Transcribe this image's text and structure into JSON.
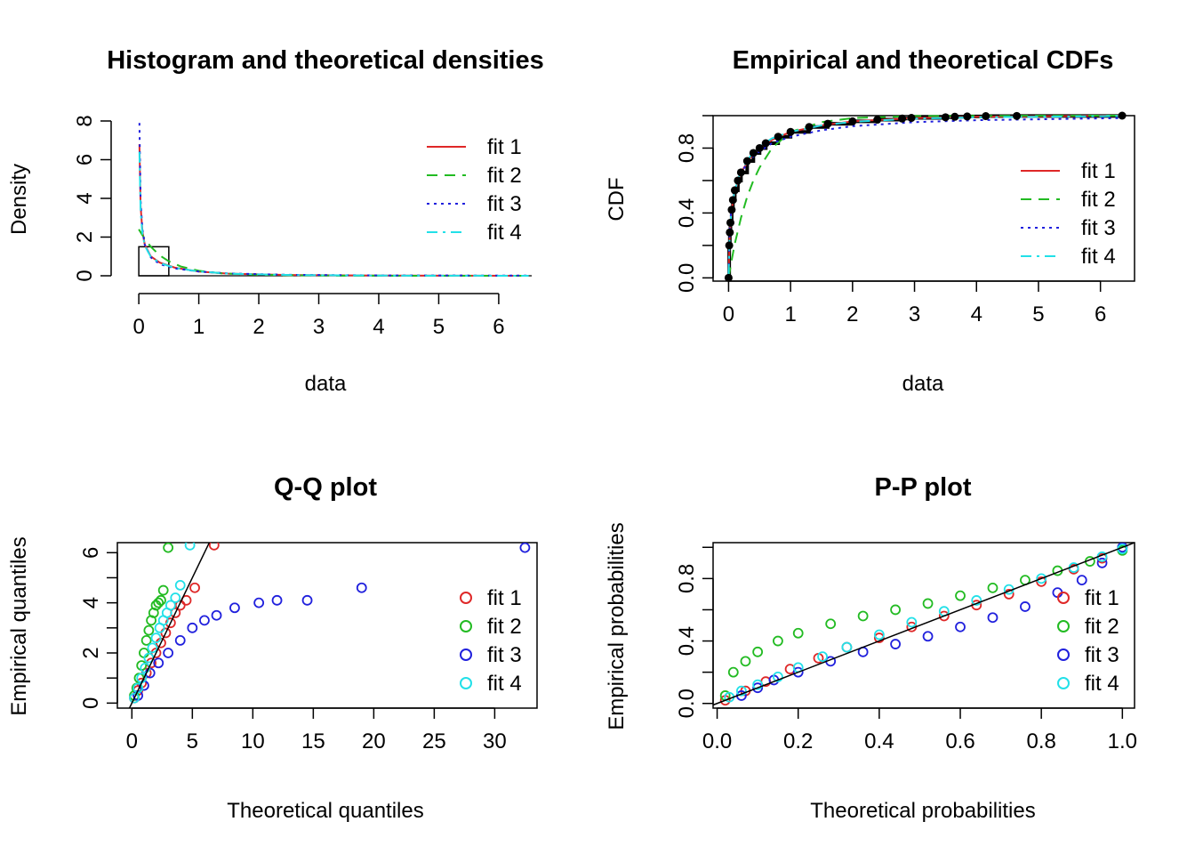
{
  "colors": {
    "fit_1": "#df2828",
    "fit_2": "#22bb22",
    "fit_3": "#2020dd",
    "fit_4": "#22e0e8",
    "frame": "#000000"
  },
  "legend_labels": [
    "fit 1",
    "fit 2",
    "fit 3",
    "fit 4"
  ],
  "chart_data": [
    {
      "type": "line",
      "panel": "density",
      "title": "Histogram and theoretical densities",
      "xlabel": "data",
      "ylabel": "Density",
      "xlim": [
        -0.15,
        6.55
      ],
      "ylim": [
        0,
        8
      ],
      "xticks": [
        "0",
        "1",
        "2",
        "3",
        "4",
        "5",
        "6"
      ],
      "yticks": [
        "0",
        "2",
        "4",
        "6",
        "8"
      ],
      "legend_position": "top-right",
      "histogram": {
        "bins": [
          [
            0,
            0.5
          ]
        ],
        "density": [
          1.5
        ]
      },
      "series": [
        {
          "name": "fit 1",
          "line": "solid",
          "peak": 6.8,
          "x": [
            0.01,
            0.03,
            0.06,
            0.1,
            0.2,
            0.35,
            0.6,
            1.0,
            1.5,
            2.5,
            4,
            6.5
          ],
          "y": [
            6.8,
            3.6,
            2.3,
            1.6,
            1.0,
            0.68,
            0.42,
            0.22,
            0.11,
            0.04,
            0.01,
            0.0
          ]
        },
        {
          "name": "fit 2",
          "line": "dashed",
          "x": [
            0.0,
            0.1,
            0.2,
            0.35,
            0.5,
            0.7,
            1.0,
            1.4,
            2.0,
            3.0,
            4.5,
            6.5
          ],
          "y": [
            2.4,
            1.9,
            1.5,
            1.05,
            0.75,
            0.48,
            0.26,
            0.12,
            0.05,
            0.01,
            0.0,
            0.0
          ]
        },
        {
          "name": "fit 3",
          "line": "dotted",
          "x": [
            0.01,
            0.03,
            0.06,
            0.1,
            0.2,
            0.35,
            0.6,
            1.0,
            1.5,
            2.5,
            4,
            6.5
          ],
          "y": [
            7.9,
            3.9,
            2.4,
            1.6,
            0.95,
            0.6,
            0.38,
            0.22,
            0.12,
            0.05,
            0.02,
            0.01
          ]
        },
        {
          "name": "fit 4",
          "line": "dashdot",
          "x": [
            0.01,
            0.03,
            0.06,
            0.1,
            0.2,
            0.35,
            0.6,
            1.0,
            1.5,
            2.5,
            4,
            6.5
          ],
          "y": [
            6.4,
            3.3,
            2.2,
            1.55,
            0.98,
            0.66,
            0.41,
            0.22,
            0.11,
            0.04,
            0.01,
            0.0
          ]
        }
      ]
    },
    {
      "type": "line",
      "panel": "cdf",
      "title": "Empirical and theoretical CDFs",
      "xlabel": "data",
      "ylabel": "CDF",
      "xlim": [
        -0.25,
        6.55
      ],
      "ylim": [
        -0.02,
        1.0
      ],
      "xticks": [
        "0",
        "1",
        "2",
        "3",
        "4",
        "5",
        "6"
      ],
      "yticks": [
        "0.0",
        "0.4",
        "0.8"
      ],
      "legend_position": "right",
      "empirical": {
        "x": [
          0.0,
          0.01,
          0.02,
          0.03,
          0.05,
          0.07,
          0.1,
          0.15,
          0.2,
          0.3,
          0.4,
          0.5,
          0.6,
          0.8,
          1.0,
          1.3,
          1.6,
          2.0,
          2.4,
          2.8,
          2.95,
          3.5,
          3.65,
          3.85,
          4.15,
          4.65,
          6.35
        ],
        "y": [
          0.0,
          0.2,
          0.28,
          0.34,
          0.42,
          0.48,
          0.54,
          0.6,
          0.65,
          0.72,
          0.77,
          0.8,
          0.83,
          0.87,
          0.9,
          0.93,
          0.95,
          0.965,
          0.975,
          0.982,
          0.986,
          0.99,
          0.993,
          0.995,
          0.997,
          0.998,
          1.0
        ]
      },
      "series": [
        {
          "name": "fit 1",
          "line": "solid",
          "x": [
            0.0,
            0.02,
            0.05,
            0.1,
            0.2,
            0.35,
            0.5,
            0.7,
            1.0,
            1.5,
            2.0,
            3.0,
            4.0,
            6.35
          ],
          "y": [
            0.02,
            0.28,
            0.42,
            0.53,
            0.65,
            0.74,
            0.8,
            0.85,
            0.9,
            0.94,
            0.965,
            0.985,
            0.993,
            1.0
          ]
        },
        {
          "name": "fit 2",
          "line": "dashed",
          "x": [
            0.0,
            0.05,
            0.1,
            0.2,
            0.3,
            0.4,
            0.5,
            0.7,
            1.0,
            1.5,
            2.0,
            3.0,
            6.35
          ],
          "y": [
            0.0,
            0.11,
            0.21,
            0.37,
            0.5,
            0.6,
            0.68,
            0.8,
            0.9,
            0.96,
            0.985,
            0.998,
            1.0
          ]
        },
        {
          "name": "fit 3",
          "line": "dotted",
          "x": [
            0.0,
            0.02,
            0.05,
            0.1,
            0.2,
            0.35,
            0.5,
            0.7,
            1.0,
            1.5,
            2.0,
            3.0,
            4.0,
            6.35
          ],
          "y": [
            0.03,
            0.32,
            0.44,
            0.54,
            0.65,
            0.73,
            0.78,
            0.83,
            0.87,
            0.91,
            0.935,
            0.96,
            0.972,
            0.985
          ]
        },
        {
          "name": "fit 4",
          "line": "dashdot",
          "x": [
            0.0,
            0.02,
            0.05,
            0.1,
            0.2,
            0.35,
            0.5,
            0.7,
            1.0,
            1.5,
            2.0,
            3.0,
            4.0,
            6.35
          ],
          "y": [
            0.02,
            0.29,
            0.43,
            0.54,
            0.66,
            0.75,
            0.81,
            0.86,
            0.9,
            0.94,
            0.962,
            0.982,
            0.99,
            0.998
          ]
        }
      ]
    },
    {
      "type": "scatter",
      "panel": "qq",
      "title": "Q-Q plot",
      "xlabel": "Theoretical quantiles",
      "ylabel": "Empirical quantiles",
      "xlim": [
        -1.2,
        33.5
      ],
      "ylim": [
        -0.2,
        6.4
      ],
      "xticks": [
        "0",
        "5",
        "10",
        "15",
        "20",
        "25",
        "30"
      ],
      "yticks": [
        "0",
        "2",
        "4",
        "6"
      ],
      "legend_position": "right",
      "reference_line": "y = x",
      "series": [
        {
          "name": "fit 1",
          "x": [
            0.2,
            0.5,
            0.8,
            1.2,
            1.6,
            2.0,
            2.4,
            2.8,
            3.2,
            3.6,
            4.0,
            4.5,
            5.2,
            6.8
          ],
          "y": [
            0.2,
            0.5,
            0.8,
            1.2,
            1.6,
            2.0,
            2.4,
            2.8,
            3.2,
            3.6,
            3.9,
            4.1,
            4.6,
            6.3
          ]
        },
        {
          "name": "fit 2",
          "x": [
            0.2,
            0.4,
            0.6,
            0.8,
            1.0,
            1.2,
            1.4,
            1.6,
            1.8,
            2.0,
            2.2,
            2.4,
            2.6,
            3.0
          ],
          "y": [
            0.3,
            0.6,
            1.0,
            1.5,
            2.0,
            2.5,
            2.9,
            3.3,
            3.6,
            3.9,
            4.0,
            4.1,
            4.5,
            6.2
          ]
        },
        {
          "name": "fit 3",
          "x": [
            0.5,
            1.0,
            1.5,
            2.2,
            3.0,
            4.0,
            5.0,
            6.0,
            7.0,
            8.5,
            10.5,
            12.0,
            14.5,
            19.0,
            32.5
          ],
          "y": [
            0.3,
            0.7,
            1.2,
            1.6,
            2.0,
            2.5,
            3.0,
            3.3,
            3.5,
            3.8,
            4.0,
            4.1,
            4.1,
            4.6,
            6.2
          ]
        },
        {
          "name": "fit 4",
          "x": [
            0.2,
            0.5,
            0.8,
            1.1,
            1.4,
            1.7,
            2.0,
            2.3,
            2.6,
            2.9,
            3.2,
            3.6,
            4.0,
            4.8
          ],
          "y": [
            0.2,
            0.6,
            1.0,
            1.4,
            1.8,
            2.2,
            2.6,
            3.0,
            3.3,
            3.6,
            3.9,
            4.2,
            4.7,
            6.3
          ]
        }
      ]
    },
    {
      "type": "scatter",
      "panel": "pp",
      "title": "P-P plot",
      "xlabel": "Theoretical probabilities",
      "ylabel": "Empirical probabilities",
      "xlim": [
        -0.01,
        1.03
      ],
      "ylim": [
        -0.03,
        1.03
      ],
      "xticks": [
        "0.0",
        "0.2",
        "0.4",
        "0.6",
        "0.8",
        "1.0"
      ],
      "yticks": [
        "0.0",
        "0.4",
        "0.8"
      ],
      "legend_position": "right",
      "reference_line": "y = x",
      "series": [
        {
          "name": "fit 1",
          "x": [
            0.02,
            0.07,
            0.12,
            0.18,
            0.25,
            0.32,
            0.4,
            0.48,
            0.56,
            0.64,
            0.72,
            0.8,
            0.88,
            0.95,
            1.0
          ],
          "y": [
            0.02,
            0.08,
            0.14,
            0.22,
            0.29,
            0.36,
            0.42,
            0.49,
            0.56,
            0.63,
            0.7,
            0.78,
            0.86,
            0.93,
            1.0
          ]
        },
        {
          "name": "fit 2",
          "x": [
            0.02,
            0.04,
            0.07,
            0.1,
            0.15,
            0.2,
            0.28,
            0.36,
            0.44,
            0.52,
            0.6,
            0.68,
            0.76,
            0.84,
            0.92,
            1.0
          ],
          "y": [
            0.05,
            0.2,
            0.27,
            0.33,
            0.4,
            0.45,
            0.51,
            0.56,
            0.6,
            0.64,
            0.69,
            0.74,
            0.79,
            0.85,
            0.91,
            0.98
          ]
        },
        {
          "name": "fit 3",
          "x": [
            0.06,
            0.1,
            0.14,
            0.2,
            0.28,
            0.36,
            0.44,
            0.52,
            0.6,
            0.68,
            0.76,
            0.84,
            0.9,
            0.95,
            1.0
          ],
          "y": [
            0.05,
            0.1,
            0.15,
            0.2,
            0.27,
            0.33,
            0.38,
            0.43,
            0.49,
            0.55,
            0.62,
            0.71,
            0.79,
            0.9,
            1.0
          ]
        },
        {
          "name": "fit 4",
          "x": [
            0.03,
            0.06,
            0.1,
            0.15,
            0.2,
            0.26,
            0.32,
            0.4,
            0.48,
            0.56,
            0.64,
            0.72,
            0.8,
            0.88,
            0.95,
            1.0
          ],
          "y": [
            0.04,
            0.08,
            0.12,
            0.17,
            0.23,
            0.3,
            0.36,
            0.44,
            0.52,
            0.59,
            0.66,
            0.73,
            0.8,
            0.87,
            0.94,
            0.99
          ]
        }
      ]
    }
  ]
}
